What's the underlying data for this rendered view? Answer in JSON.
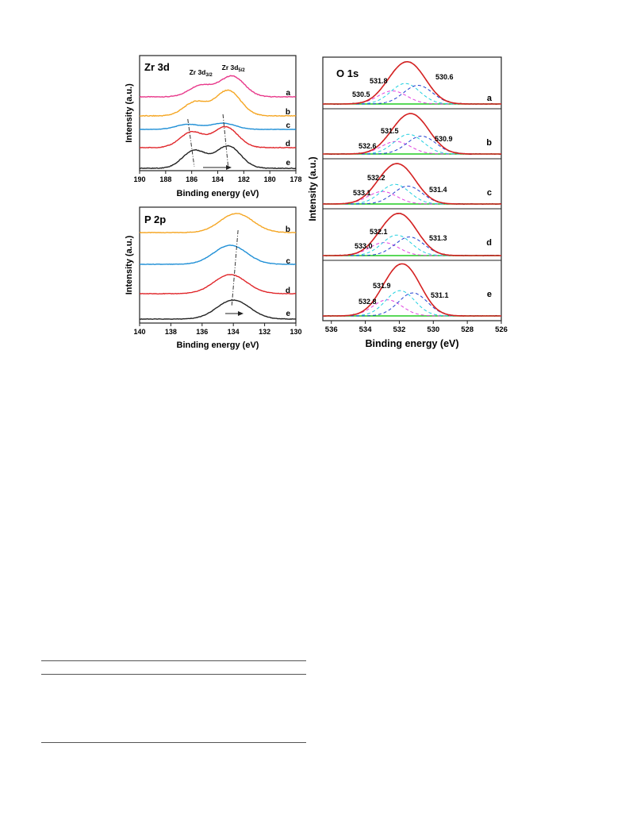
{
  "chart_data": [
    {
      "type": "line",
      "title": "Zr 3d",
      "xlabel": "Binding energy (eV)",
      "ylabel": "Intensity (a.u.)",
      "xlim": [
        190,
        178
      ],
      "x_reversed": true,
      "xticks": [
        190,
        188,
        186,
        184,
        182,
        180,
        178
      ],
      "peak_labels": [
        {
          "base": "Zr 3d",
          "sub": "3/2",
          "x": 185.3
        },
        {
          "base": "Zr 3d",
          "sub": "5/2",
          "x": 182.8
        }
      ],
      "series": [
        {
          "name": "a",
          "color": "#e8388a",
          "peaks": [
            185.3,
            182.9
          ],
          "heights": [
            0.55,
            1.0
          ]
        },
        {
          "name": "b",
          "color": "#f5a623",
          "peaks": [
            185.7,
            183.2
          ],
          "heights": [
            0.55,
            1.0
          ]
        },
        {
          "name": "c",
          "color": "#1f8fd6",
          "peaks": [
            186.3,
            183.6
          ],
          "heights": [
            0.45,
            0.55
          ]
        },
        {
          "name": "d",
          "color": "#e0262a",
          "peaks": [
            186.0,
            183.4
          ],
          "heights": [
            0.75,
            1.0
          ]
        },
        {
          "name": "e",
          "color": "#222222",
          "peaks": [
            185.8,
            183.2
          ],
          "heights": [
            0.8,
            1.0
          ]
        }
      ],
      "shift_arrow": "right"
    },
    {
      "type": "line",
      "title": "P 2p",
      "xlabel": "Binding energy (eV)",
      "ylabel": "Intensity (a.u.)",
      "xlim": [
        140,
        130
      ],
      "x_reversed": true,
      "xticks": [
        140,
        138,
        136,
        134,
        132,
        130
      ],
      "series": [
        {
          "name": "b",
          "color": "#f5a623",
          "peak": 133.8
        },
        {
          "name": "c",
          "color": "#1f8fd6",
          "peak": 134.2
        },
        {
          "name": "d",
          "color": "#e0262a",
          "peak": 134.2
        },
        {
          "name": "e",
          "color": "#222222",
          "peak": 134.0
        }
      ],
      "shift_arrow": "right"
    },
    {
      "type": "line",
      "title": "O 1s",
      "xlabel": "Binding energy (eV)",
      "ylabel": "Intensity (a.u.)",
      "xlim": [
        536.5,
        526
      ],
      "x_reversed": true,
      "xticks": [
        536,
        534,
        532,
        530,
        528,
        526
      ],
      "panels": [
        {
          "name": "a",
          "envelope_center": 531.5,
          "components": [
            530.5,
            531.8,
            530.6
          ]
        },
        {
          "name": "b",
          "envelope_center": 531.3,
          "components": [
            532.6,
            531.5,
            530.9
          ]
        },
        {
          "name": "c",
          "envelope_center": 532.1,
          "components": [
            533.1,
            532.2,
            531.4
          ]
        },
        {
          "name": "d",
          "envelope_center": 532.0,
          "components": [
            533.0,
            532.1,
            531.3
          ]
        },
        {
          "name": "e",
          "envelope_center": 531.8,
          "components": [
            532.8,
            531.9,
            531.1
          ]
        }
      ],
      "component_labels": [
        [
          "530.5",
          "531.8",
          "530.6"
        ],
        [
          "532.6",
          "531.5",
          "530.9"
        ],
        [
          "533.1",
          "532.2",
          "531.4"
        ],
        [
          "533.0",
          "532.1",
          "531.3"
        ],
        [
          "532.8",
          "531.9",
          "531.1"
        ]
      ],
      "colors": {
        "envelope": "#d62222",
        "raw": "#333333",
        "baseline": "#22cc22",
        "c1": "#e040e0",
        "c2": "#20d0e0",
        "c3": "#2040d0"
      }
    }
  ]
}
